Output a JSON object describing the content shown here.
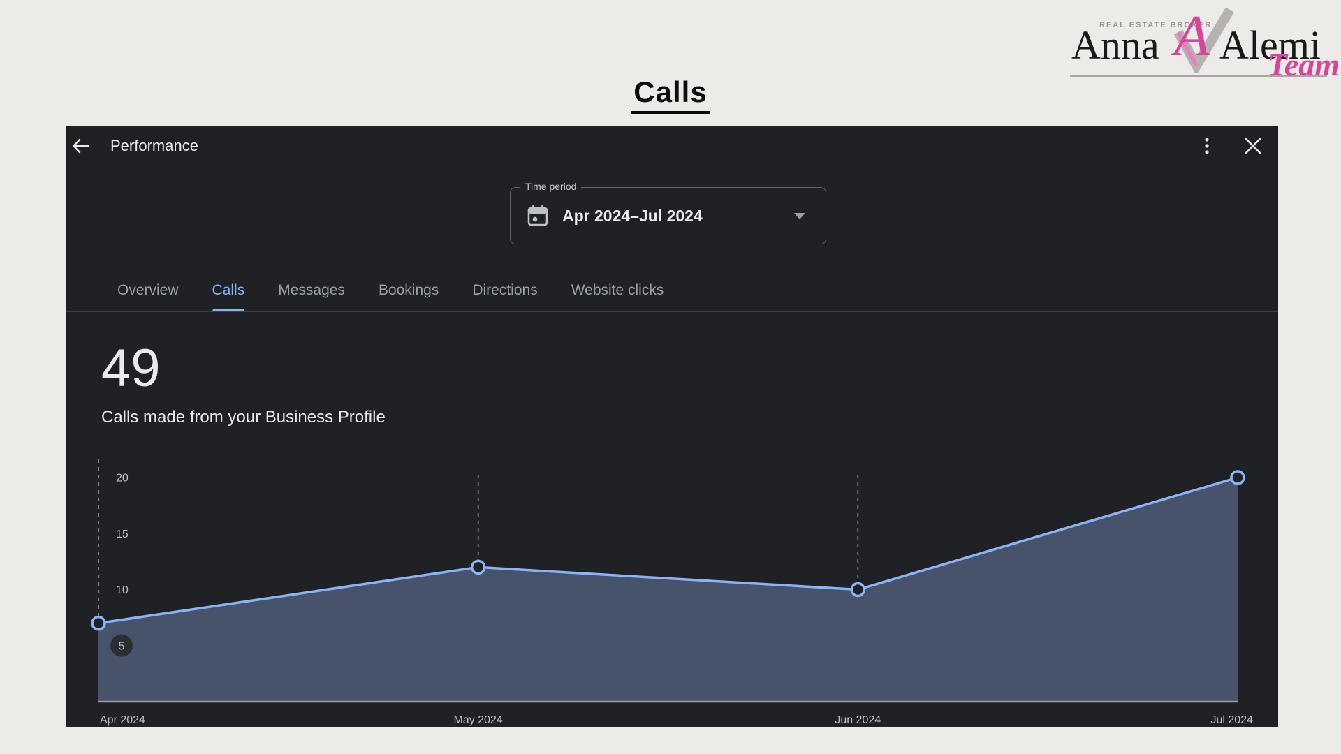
{
  "page": {
    "background": "#edebe8"
  },
  "logo": {
    "tagline": "REAL ESTATE BROKER",
    "name_first": "Anna",
    "name_last": "Alemi",
    "monogram_letter": "A",
    "team": "Team",
    "accent_pink": "#d6459a",
    "check_gray": "#b5b2af"
  },
  "heading": {
    "title": "Calls"
  },
  "dialog": {
    "title": "Performance",
    "icons": {
      "back": "left-arrow",
      "more": "vertical-ellipsis",
      "close": "x",
      "calendar": "calendar",
      "caret": "triangle-down"
    },
    "time_period": {
      "label": "Time period",
      "value": "Apr 2024–Jul 2024"
    },
    "tabs": [
      {
        "label": "Overview",
        "active": false
      },
      {
        "label": "Calls",
        "active": true
      },
      {
        "label": "Messages",
        "active": false
      },
      {
        "label": "Bookings",
        "active": false
      },
      {
        "label": "Directions",
        "active": false
      },
      {
        "label": "Website clicks",
        "active": false
      }
    ],
    "metric": {
      "value": "49",
      "description": "Calls made from your Business Profile"
    },
    "colors": {
      "background": "#1f2125",
      "text": "#e8eaed",
      "muted": "#9aa0a6",
      "divider": "#3c4043",
      "accent": "#8ab4f8"
    }
  },
  "chart_data": {
    "type": "area",
    "title": "Calls made from your Business Profile",
    "categories": [
      "Apr 2024",
      "May 2024",
      "Jun 2024",
      "Jul 2024"
    ],
    "values": [
      7,
      12,
      10,
      20
    ],
    "series_name": "Calls",
    "total": 49,
    "yticks": [
      5,
      10,
      15,
      20
    ],
    "badged_tick": 5,
    "ylim": [
      0,
      20
    ],
    "grid": "dashed-vertical",
    "legend": "none",
    "colors": {
      "line": "#8ab4f8",
      "fill": "#46536b",
      "grid": "#9aa0a6",
      "axis_text": "#bdc1c6",
      "dot_fill": "#1f2125",
      "badge_fill": "#2c2e32",
      "baseline": "#9aa0a6"
    }
  }
}
